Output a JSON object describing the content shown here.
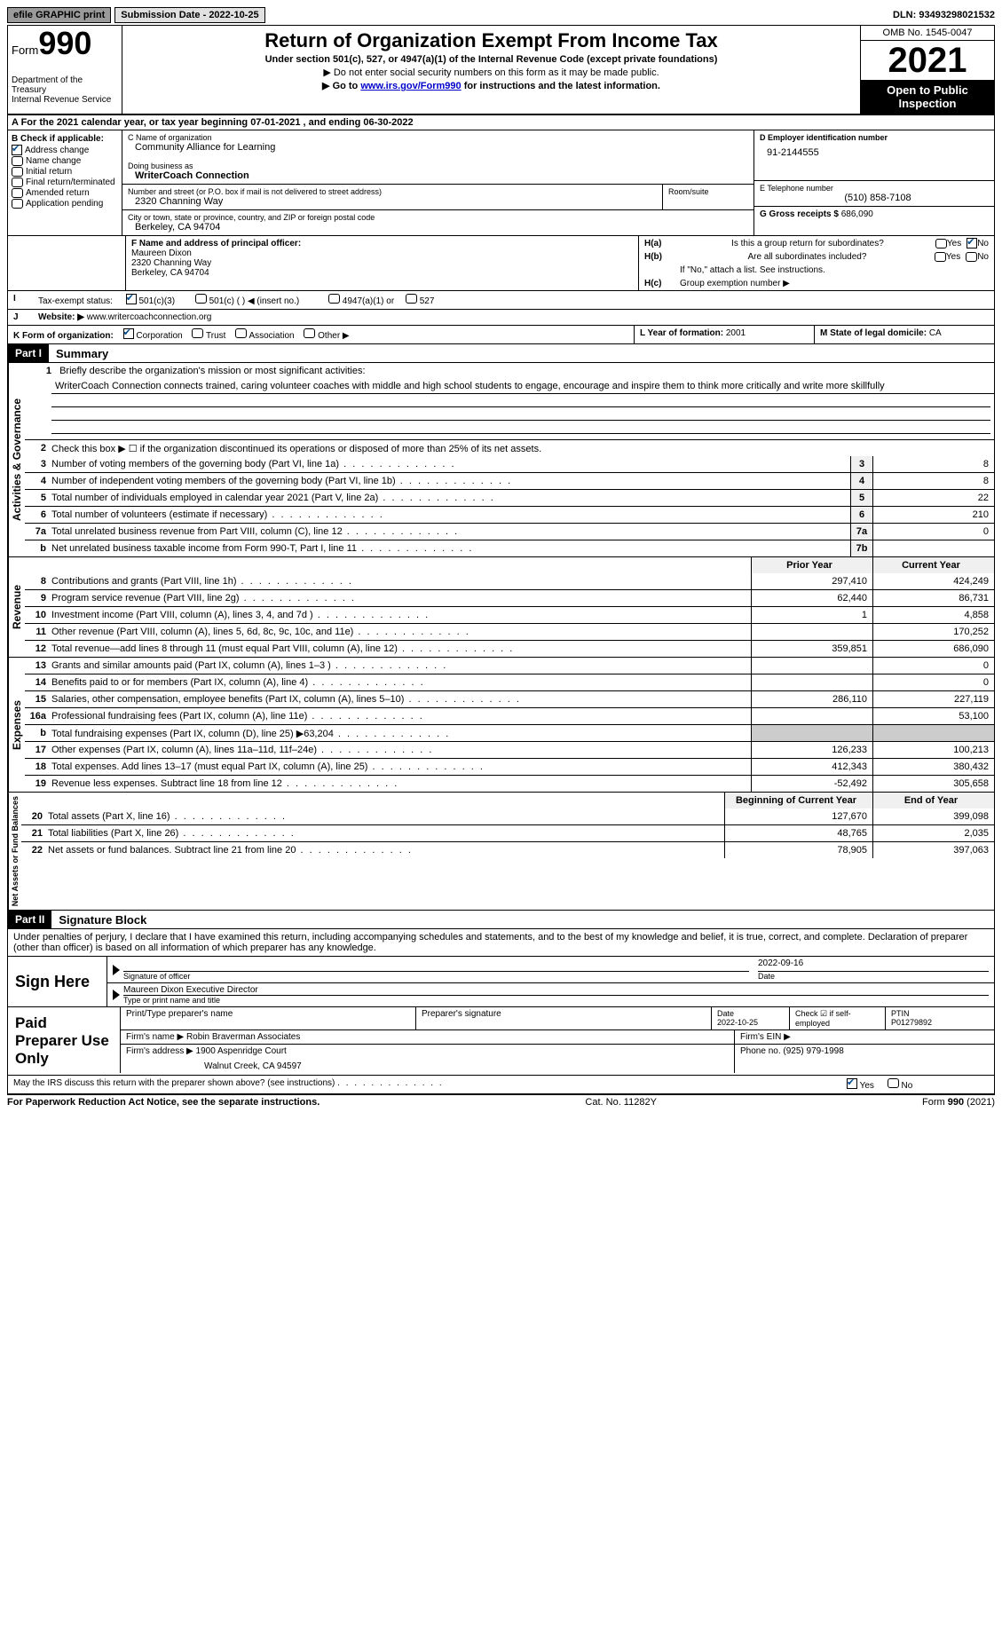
{
  "topbar": {
    "efile": "efile GRAPHIC print",
    "submission": "Submission Date - 2022-10-25",
    "dln": "DLN: 93493298021532"
  },
  "header": {
    "form_label": "Form",
    "form_num": "990",
    "dept": "Department of the Treasury",
    "irs": "Internal Revenue Service",
    "title": "Return of Organization Exempt From Income Tax",
    "subtitle": "Under section 501(c), 527, or 4947(a)(1) of the Internal Revenue Code (except private foundations)",
    "note1": "▶ Do not enter social security numbers on this form as it may be made public.",
    "note2_pre": "▶ Go to ",
    "note2_link": "www.irs.gov/Form990",
    "note2_post": " for instructions and the latest information.",
    "omb": "OMB No. 1545-0047",
    "year": "2021",
    "inspection": "Open to Public Inspection"
  },
  "row_a": "A For the 2021 calendar year, or tax year beginning 07-01-2021    , and ending 06-30-2022",
  "section_b": {
    "label": "B Check if applicable:",
    "items": [
      "Address change",
      "Name change",
      "Initial return",
      "Final return/terminated",
      "Amended return",
      "Application pending"
    ],
    "checked_index": 0
  },
  "section_c": {
    "name_label": "C Name of organization",
    "name": "Community Alliance for Learning",
    "dba_label": "Doing business as",
    "dba": "WriterCoach Connection",
    "street_label": "Number and street (or P.O. box if mail is not delivered to street address)",
    "street": "2320 Channing Way",
    "room_label": "Room/suite",
    "city_label": "City or town, state or province, country, and ZIP or foreign postal code",
    "city": "Berkeley, CA  94704"
  },
  "section_d": {
    "label": "D Employer identification number",
    "value": "91-2144555"
  },
  "section_e": {
    "label": "E Telephone number",
    "value": "(510) 858-7108"
  },
  "section_g": {
    "label": "G Gross receipts $",
    "value": "686,090"
  },
  "section_f": {
    "label": "F  Name and address of principal officer:",
    "name": "Maureen Dixon",
    "street": "2320 Channing Way",
    "city": "Berkeley, CA  94704"
  },
  "section_h": {
    "a_label": "H(a)",
    "a_text": "Is this a group return for subordinates?",
    "b_label": "H(b)",
    "b_text": "Are all subordinates included?",
    "b_note": "If \"No,\" attach a list. See instructions.",
    "c_label": "H(c)",
    "c_text": "Group exemption number ▶",
    "yes": "Yes",
    "no": "No"
  },
  "tax_exempt": {
    "label_i": "I",
    "label": "Tax-exempt status:",
    "opt1": "501(c)(3)",
    "opt2": "501(c) (  ) ◀ (insert no.)",
    "opt3": "4947(a)(1) or",
    "opt4": "527"
  },
  "website": {
    "label_j": "J",
    "label": "Website: ▶",
    "value": "www.writercoachconnection.org"
  },
  "row_k": {
    "label": "K Form of organization:",
    "opts": [
      "Corporation",
      "Trust",
      "Association",
      "Other ▶"
    ]
  },
  "row_l": {
    "label": "L Year of formation:",
    "value": "2001"
  },
  "row_m": {
    "label": "M State of legal domicile:",
    "value": "CA"
  },
  "part1": {
    "header": "Part I",
    "title": "Summary"
  },
  "mission": {
    "line1_label": "1",
    "line1_intro": "Briefly describe the organization's mission or most significant activities:",
    "text": "WriterCoach Connection connects trained, caring volunteer coaches with middle and high school students to engage, encourage and inspire them to think more critically and write more skillfully"
  },
  "summary": {
    "sidebars": [
      "Activities & Governance",
      "Revenue",
      "Expenses",
      "Net Assets or Fund Balances"
    ],
    "line2": "Check this box ▶ ☐  if the organization discontinued its operations or disposed of more than 25% of its net assets.",
    "gov_lines": [
      {
        "n": "3",
        "d": "Number of voting members of the governing body (Part VI, line 1a)",
        "b": "3",
        "v": "8"
      },
      {
        "n": "4",
        "d": "Number of independent voting members of the governing body (Part VI, line 1b)",
        "b": "4",
        "v": "8"
      },
      {
        "n": "5",
        "d": "Total number of individuals employed in calendar year 2021 (Part V, line 2a)",
        "b": "5",
        "v": "22"
      },
      {
        "n": "6",
        "d": "Total number of volunteers (estimate if necessary)",
        "b": "6",
        "v": "210"
      },
      {
        "n": "7a",
        "d": "Total unrelated business revenue from Part VIII, column (C), line 12",
        "b": "7a",
        "v": "0"
      },
      {
        "n": "b",
        "d": "Net unrelated business taxable income from Form 990-T, Part I, line 11",
        "b": "7b",
        "v": ""
      }
    ],
    "col_headers": {
      "prior": "Prior Year",
      "current": "Current Year"
    },
    "rev_lines": [
      {
        "n": "8",
        "d": "Contributions and grants (Part VIII, line 1h)",
        "p": "297,410",
        "c": "424,249"
      },
      {
        "n": "9",
        "d": "Program service revenue (Part VIII, line 2g)",
        "p": "62,440",
        "c": "86,731"
      },
      {
        "n": "10",
        "d": "Investment income (Part VIII, column (A), lines 3, 4, and 7d )",
        "p": "1",
        "c": "4,858"
      },
      {
        "n": "11",
        "d": "Other revenue (Part VIII, column (A), lines 5, 6d, 8c, 9c, 10c, and 11e)",
        "p": "",
        "c": "170,252"
      },
      {
        "n": "12",
        "d": "Total revenue—add lines 8 through 11 (must equal Part VIII, column (A), line 12)",
        "p": "359,851",
        "c": "686,090"
      }
    ],
    "exp_lines": [
      {
        "n": "13",
        "d": "Grants and similar amounts paid (Part IX, column (A), lines 1–3 )",
        "p": "",
        "c": "0"
      },
      {
        "n": "14",
        "d": "Benefits paid to or for members (Part IX, column (A), line 4)",
        "p": "",
        "c": "0"
      },
      {
        "n": "15",
        "d": "Salaries, other compensation, employee benefits (Part IX, column (A), lines 5–10)",
        "p": "286,110",
        "c": "227,119"
      },
      {
        "n": "16a",
        "d": "Professional fundraising fees (Part IX, column (A), line 11e)",
        "p": "",
        "c": "53,100"
      },
      {
        "n": "b",
        "d": "Total fundraising expenses (Part IX, column (D), line 25) ▶63,204",
        "p": "grey",
        "c": "grey"
      },
      {
        "n": "17",
        "d": "Other expenses (Part IX, column (A), lines 11a–11d, 11f–24e)",
        "p": "126,233",
        "c": "100,213"
      },
      {
        "n": "18",
        "d": "Total expenses. Add lines 13–17 (must equal Part IX, column (A), line 25)",
        "p": "412,343",
        "c": "380,432"
      },
      {
        "n": "19",
        "d": "Revenue less expenses. Subtract line 18 from line 12",
        "p": "-52,492",
        "c": "305,658"
      }
    ],
    "net_headers": {
      "prior": "Beginning of Current Year",
      "current": "End of Year"
    },
    "net_lines": [
      {
        "n": "20",
        "d": "Total assets (Part X, line 16)",
        "p": "127,670",
        "c": "399,098"
      },
      {
        "n": "21",
        "d": "Total liabilities (Part X, line 26)",
        "p": "48,765",
        "c": "2,035"
      },
      {
        "n": "22",
        "d": "Net assets or fund balances. Subtract line 21 from line 20",
        "p": "78,905",
        "c": "397,063"
      }
    ]
  },
  "part2": {
    "header": "Part II",
    "title": "Signature Block"
  },
  "perjury": "Under penalties of perjury, I declare that I have examined this return, including accompanying schedules and statements, and to the best of my knowledge and belief, it is true, correct, and complete. Declaration of preparer (other than officer) is based on all information of which preparer has any knowledge.",
  "sign": {
    "label": "Sign Here",
    "sig_date": "2022-09-16",
    "sig_label": "Signature of officer",
    "date_label": "Date",
    "name": "Maureen Dixon  Executive Director",
    "name_label": "Type or print name and title"
  },
  "preparer": {
    "label": "Paid Preparer Use Only",
    "print_label": "Print/Type preparer's name",
    "sig_label": "Preparer's signature",
    "date_label": "Date",
    "date": "2022-10-25",
    "check_label": "Check ☑ if self-employed",
    "ptin_label": "PTIN",
    "ptin": "P01279892",
    "firm_name_label": "Firm's name    ▶",
    "firm_name": "Robin Braverman Associates",
    "firm_ein_label": "Firm's EIN ▶",
    "firm_addr_label": "Firm's address ▶",
    "firm_addr1": "1900 Aspenridge Court",
    "firm_addr2": "Walnut Creek, CA  94597",
    "phone_label": "Phone no.",
    "phone": "(925) 979-1998"
  },
  "discuss": {
    "text": "May the IRS discuss this return with the preparer shown above? (see instructions)",
    "yes": "Yes",
    "no": "No"
  },
  "footer": {
    "left": "For Paperwork Reduction Act Notice, see the separate instructions.",
    "mid": "Cat. No. 11282Y",
    "right": "Form 990 (2021)"
  }
}
